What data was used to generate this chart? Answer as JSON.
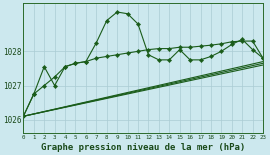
{
  "background_color": "#cce8ee",
  "grid_color": "#aaccd4",
  "line_color": "#1a5c1a",
  "title": "Graphe pression niveau de la mer (hPa)",
  "ylabel_ticks": [
    1026,
    1027,
    1028
  ],
  "xlim": [
    0,
    23
  ],
  "ylim": [
    1025.6,
    1029.4
  ],
  "line1_x": [
    0,
    1,
    2,
    3,
    4,
    5,
    6,
    7,
    8,
    9,
    10,
    11,
    12,
    13,
    14,
    15,
    16,
    17,
    18,
    19,
    20,
    21,
    22,
    23
  ],
  "line1_y": [
    1026.1,
    1026.75,
    1027.0,
    1027.25,
    1027.55,
    1027.65,
    1027.7,
    1028.25,
    1028.9,
    1029.15,
    1029.1,
    1028.8,
    1027.9,
    1027.75,
    1027.75,
    1028.05,
    1027.75,
    1027.75,
    1027.85,
    1028.0,
    1028.2,
    1028.35,
    1028.05,
    1027.8
  ],
  "line2_x": [
    0,
    1,
    2,
    3,
    4,
    5,
    6,
    7,
    8,
    9,
    10,
    11,
    12,
    13,
    14,
    15,
    16,
    17,
    18,
    19,
    20,
    21,
    22,
    23
  ],
  "line2_y": [
    1026.1,
    1026.75,
    1027.55,
    1027.0,
    1027.55,
    1027.65,
    1027.7,
    1027.8,
    1027.85,
    1027.9,
    1027.95,
    1028.0,
    1028.05,
    1028.08,
    1028.08,
    1028.12,
    1028.12,
    1028.15,
    1028.18,
    1028.22,
    1028.28,
    1028.3,
    1028.3,
    1027.8
  ],
  "line3_x": [
    0,
    23
  ],
  "line3_y": [
    1026.1,
    1027.7
  ],
  "line4_x": [
    0,
    23
  ],
  "line4_y": [
    1026.1,
    1027.65
  ],
  "line5_x": [
    0,
    23
  ],
  "line5_y": [
    1026.1,
    1027.6
  ]
}
